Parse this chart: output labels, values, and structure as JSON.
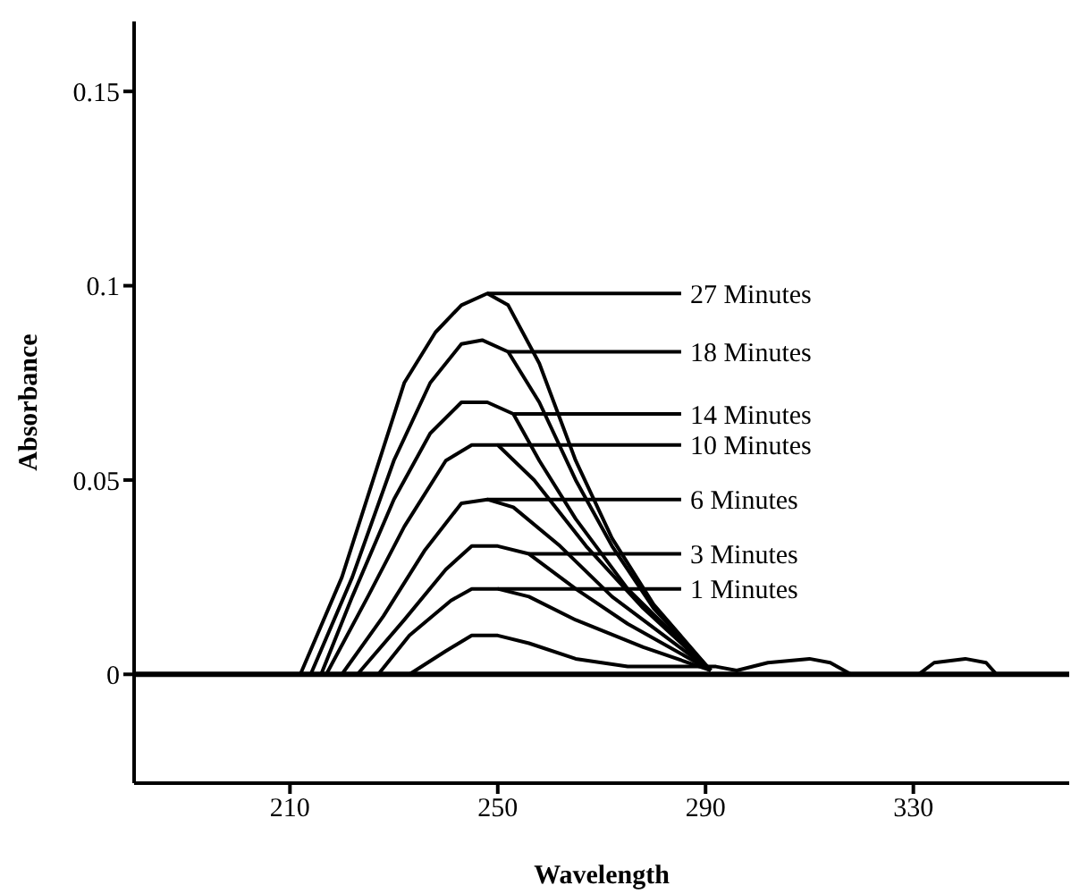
{
  "chart_data": {
    "type": "line",
    "xlabel": "Wavelength",
    "ylabel": "Absorbance",
    "xlim": [
      180,
      360
    ],
    "xticks": [
      210,
      250,
      290,
      330
    ],
    "ylim": [
      -0.028,
      0.168
    ],
    "yticks": [
      0,
      0.05,
      0.1,
      0.15
    ],
    "grid": false,
    "legend": false,
    "marker": "none",
    "line_style": "solid",
    "series": [
      {
        "color": "#000000",
        "x": [
          212,
          220,
          226,
          232,
          238,
          243,
          248,
          252,
          258,
          265,
          272,
          280,
          291
        ],
        "values": [
          0,
          0.025,
          0.05,
          0.075,
          0.088,
          0.095,
          0.098,
          0.095,
          0.08,
          0.055,
          0.035,
          0.018,
          0.001
        ]
      },
      {
        "color": "#000000",
        "x": [
          214,
          222,
          230,
          237,
          243,
          247,
          252,
          258,
          265,
          272,
          280,
          291
        ],
        "values": [
          0,
          0.025,
          0.055,
          0.075,
          0.085,
          0.086,
          0.083,
          0.07,
          0.05,
          0.033,
          0.017,
          0.001
        ]
      },
      {
        "color": "#000000",
        "x": [
          216,
          222,
          230,
          237,
          243,
          248,
          253,
          258,
          265,
          275,
          291
        ],
        "values": [
          0,
          0.02,
          0.045,
          0.062,
          0.07,
          0.07,
          0.067,
          0.055,
          0.04,
          0.022,
          0.001
        ]
      },
      {
        "color": "#000000",
        "x": [
          217,
          225,
          232,
          240,
          245,
          250,
          257,
          267,
          278,
          291
        ],
        "values": [
          0,
          0.02,
          0.038,
          0.055,
          0.059,
          0.059,
          0.05,
          0.033,
          0.017,
          0.001
        ]
      },
      {
        "color": "#000000",
        "x": [
          220,
          228,
          236,
          243,
          248,
          253,
          262,
          272,
          282,
          291
        ],
        "values": [
          0,
          0.015,
          0.032,
          0.044,
          0.045,
          0.043,
          0.033,
          0.02,
          0.01,
          0.001
        ]
      },
      {
        "color": "#000000",
        "x": [
          223,
          232,
          240,
          245,
          250,
          256,
          265,
          275,
          291
        ],
        "values": [
          0,
          0.014,
          0.027,
          0.033,
          0.033,
          0.031,
          0.022,
          0.013,
          0.001
        ]
      },
      {
        "color": "#000000",
        "x": [
          227,
          233,
          241,
          245,
          250,
          256,
          265,
          278,
          291
        ],
        "values": [
          0,
          0.01,
          0.019,
          0.022,
          0.022,
          0.02,
          0.014,
          0.007,
          0.001
        ]
      },
      {
        "color": "#000000",
        "x": [
          233,
          240,
          245,
          250,
          256,
          265,
          275,
          285,
          292,
          296,
          302,
          310,
          314,
          318,
          331,
          334,
          340,
          344,
          346
        ],
        "values": [
          0,
          0.006,
          0.01,
          0.01,
          0.008,
          0.004,
          0.002,
          0.002,
          0.002,
          0.001,
          0.003,
          0.004,
          0.003,
          0,
          0,
          0.003,
          0.004,
          0.003,
          0
        ]
      }
    ],
    "ref_lines": [
      {
        "axis": "y",
        "value": 0,
        "color": "#000000"
      }
    ],
    "annotations": [
      {
        "text": "27 Minutes",
        "x": 248,
        "y": 0.098
      },
      {
        "text": "18 Minutes",
        "x": 252,
        "y": 0.083
      },
      {
        "text": "14 Minutes",
        "x": 253,
        "y": 0.067
      },
      {
        "text": "10 Minutes",
        "x": 250,
        "y": 0.059
      },
      {
        "text": "6 Minutes",
        "x": 248,
        "y": 0.045
      },
      {
        "text": "3 Minutes",
        "x": 256,
        "y": 0.031
      },
      {
        "text": "1 Minutes",
        "x": 250,
        "y": 0.022
      }
    ]
  }
}
